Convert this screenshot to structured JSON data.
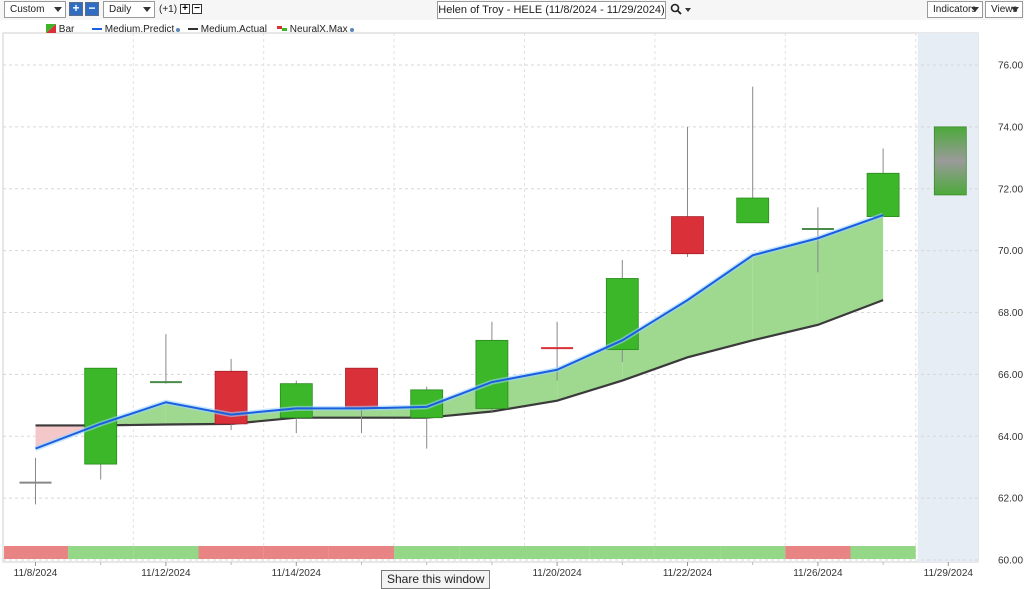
{
  "toolbar": {
    "range_select": "Custom",
    "period_select": "Daily",
    "offset_label": "(+1)",
    "chart_title": "Helen of Troy - HELE (11/8/2024 - 11/29/2024)",
    "indicators_label": "Indicators",
    "views_label": "Views"
  },
  "legend": {
    "bar": "Bar",
    "medium_predict": "Medium.Predict",
    "medium_actual": "Medium.Actual",
    "neuralx_max": "NeuralX.Max"
  },
  "colors": {
    "up": "#3cb72a",
    "down": "#d9303a",
    "predict": "#1a5fe0",
    "actual": "#3a3a3a",
    "band_up": "#9ed98f",
    "band_down": "#f4c8c8",
    "forecast_bg": "#e6edf5"
  },
  "tooltip": "Share this window",
  "chart_data": {
    "type": "candlestick",
    "ylim": [
      60,
      77
    ],
    "y_ticks": [
      "76.00",
      "74.00",
      "72.00",
      "70.00",
      "68.00",
      "66.00",
      "64.00",
      "62.00",
      "60.00"
    ],
    "x_labels": [
      "11/8/2024",
      "11/12/2024",
      "11/14/2024",
      "11/20/2024",
      "11/22/2024",
      "11/26/2024",
      "11/29/2024"
    ],
    "candles": [
      {
        "date": "11/8/2024",
        "open": 62.5,
        "close": 62.5,
        "high": 63.3,
        "low": 61.8
      },
      {
        "date": "11/11/2024",
        "open": 63.1,
        "close": 66.2,
        "high": 66.2,
        "low": 62.6
      },
      {
        "date": "11/12/2024",
        "open": 65.75,
        "close": 65.85,
        "high": 67.3,
        "low": 65.7
      },
      {
        "date": "11/13/2024",
        "open": 66.1,
        "close": 64.4,
        "high": 66.5,
        "low": 64.2
      },
      {
        "date": "11/14/2024",
        "open": 64.6,
        "close": 65.7,
        "high": 65.8,
        "low": 64.1
      },
      {
        "date": "11/15/2024",
        "open": 66.2,
        "close": 64.9,
        "high": 66.2,
        "low": 64.1
      },
      {
        "date": "11/18/2024",
        "open": 64.6,
        "close": 65.5,
        "high": 65.6,
        "low": 63.6
      },
      {
        "date": "11/19/2024",
        "open": 64.9,
        "close": 67.1,
        "high": 67.7,
        "low": 64.8
      },
      {
        "date": "11/20/2024",
        "open": 66.85,
        "close": 66.85,
        "high": 67.7,
        "low": 65.8
      },
      {
        "date": "11/21/2024",
        "open": 66.8,
        "close": 69.1,
        "high": 69.7,
        "low": 66.4
      },
      {
        "date": "11/22/2024",
        "open": 71.1,
        "close": 69.9,
        "high": 74.0,
        "low": 69.8
      },
      {
        "date": "11/25/2024",
        "open": 70.9,
        "close": 71.7,
        "high": 75.3,
        "low": 70.9
      },
      {
        "date": "11/26/2024",
        "open": 70.7,
        "close": 70.7,
        "high": 71.4,
        "low": 69.3
      },
      {
        "date": "11/27/2024",
        "open": 71.1,
        "close": 72.5,
        "high": 73.3,
        "low": 71.1
      }
    ],
    "forecast": {
      "date": "11/29/2024",
      "high": 74.0,
      "low": 71.8
    },
    "medium_predict": [
      63.6,
      64.4,
      65.1,
      64.7,
      64.9,
      64.9,
      64.95,
      65.75,
      66.15,
      67.1,
      68.4,
      69.85,
      70.4,
      71.15
    ],
    "medium_actual": [
      64.35,
      64.35,
      64.38,
      64.4,
      64.6,
      64.6,
      64.6,
      64.8,
      65.15,
      65.8,
      66.55,
      67.1,
      67.6,
      68.4
    ],
    "signal_bar": [
      "down",
      "up",
      "up",
      "down",
      "down",
      "down",
      "up",
      "up",
      "up",
      "up",
      "up",
      "up",
      "down",
      "up"
    ]
  }
}
